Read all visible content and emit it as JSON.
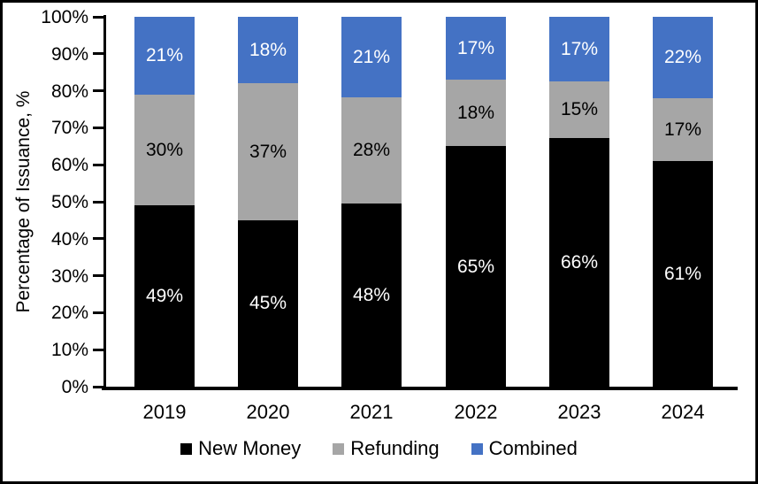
{
  "figure": {
    "background": "#FFFFFF",
    "border_color": "#000000"
  },
  "y_axis": {
    "title": "Percentage of Issuance, %",
    "tick_labels": [
      "100%",
      "90%",
      "80%",
      "70%",
      "60%",
      "50%",
      "40%",
      "30%",
      "20%",
      "10%",
      "0%"
    ]
  },
  "x_axis": {
    "categories": [
      "2019",
      "2020",
      "2021",
      "2022",
      "2023",
      "2024"
    ]
  },
  "legend": {
    "items": [
      {
        "label": "New Money",
        "color": "#000000"
      },
      {
        "label": "Refunding",
        "color": "#A6A6A6"
      },
      {
        "label": "Combined",
        "color": "#4472C4"
      }
    ]
  },
  "chart_data": {
    "type": "bar",
    "stacked": true,
    "percent_stacked": true,
    "title": "",
    "xlabel": "",
    "ylabel": "Percentage of Issuance, %",
    "ylim": [
      0,
      100
    ],
    "y_tick_step": 10,
    "grid": false,
    "legend_position": "bottom",
    "data_label_format": "{v}%",
    "categories": [
      "2019",
      "2020",
      "2021",
      "2022",
      "2023",
      "2024"
    ],
    "series": [
      {
        "name": "New Money",
        "color": "#000000",
        "label_color": "#FFFFFF",
        "values": [
          49,
          45,
          48,
          65,
          66,
          61
        ]
      },
      {
        "name": "Refunding",
        "color": "#A6A6A6",
        "label_color": "#000000",
        "values": [
          30,
          37,
          28,
          18,
          15,
          17
        ]
      },
      {
        "name": "Combined",
        "color": "#4472C4",
        "label_color": "#FFFFFF",
        "values": [
          21,
          18,
          21,
          17,
          17,
          22
        ]
      }
    ]
  }
}
